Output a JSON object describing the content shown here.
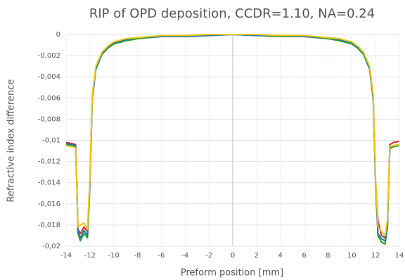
{
  "chart_data": {
    "type": "line",
    "title": "RIP of OPD deposition, CCDR=1.10, NA=0.24",
    "x_label": "Preform position [mm]",
    "y_label": "Refractive index difference",
    "x": [
      -14,
      -13.5,
      -13.2,
      -13.1,
      -13.0,
      -12.8,
      -12.5,
      -12.2,
      -12.0,
      -11.8,
      -11.5,
      -11,
      -10.5,
      -10,
      -9,
      -8,
      -6,
      -4,
      -2,
      0,
      2,
      4,
      6,
      8,
      9,
      10,
      10.5,
      11,
      11.5,
      11.8,
      12.0,
      12.2,
      12.5,
      12.8,
      13.0,
      13.1,
      13.2,
      13.5,
      14
    ],
    "series": [
      {
        "color": "#d62728",
        "values": [
          -0.0102,
          -0.0103,
          -0.0104,
          -0.014,
          -0.0184,
          -0.0188,
          -0.0182,
          -0.0186,
          -0.0138,
          -0.0058,
          -0.0031,
          -0.0018,
          -0.0012,
          -0.0008,
          -0.0005,
          -0.0003,
          -0.0002,
          -0.0001,
          0,
          0,
          -0.0001,
          -0.0001,
          -0.0002,
          -0.0003,
          -0.0005,
          -0.0008,
          -0.0012,
          -0.0018,
          -0.0031,
          -0.0058,
          -0.0138,
          -0.0176,
          -0.019,
          -0.0192,
          -0.0178,
          -0.0138,
          -0.0104,
          -0.0102,
          -0.0101
        ]
      },
      {
        "color": "#2ca02c",
        "values": [
          -0.0104,
          -0.0105,
          -0.0106,
          -0.0142,
          -0.0188,
          -0.0195,
          -0.0188,
          -0.0192,
          -0.0142,
          -0.0061,
          -0.0033,
          -0.0019,
          -0.0013,
          -0.0009,
          -0.0006,
          -0.0004,
          -0.0002,
          -0.0002,
          -0.0001,
          0,
          -0.0001,
          -0.0002,
          -0.0002,
          -0.0004,
          -0.0006,
          -0.0009,
          -0.0013,
          -0.0019,
          -0.0033,
          -0.0061,
          -0.0142,
          -0.019,
          -0.0196,
          -0.0198,
          -0.0182,
          -0.0141,
          -0.0108,
          -0.0106,
          -0.0105
        ]
      },
      {
        "color": "#1f77b4",
        "values": [
          -0.0103,
          -0.0104,
          -0.0105,
          -0.0141,
          -0.0186,
          -0.0192,
          -0.0185,
          -0.019,
          -0.014,
          -0.006,
          -0.0032,
          -0.0018,
          -0.0012,
          -0.0008,
          -0.0005,
          -0.0003,
          -0.0002,
          -0.0002,
          -0.0001,
          0,
          -0.0001,
          -0.0001,
          -0.0002,
          -0.0003,
          -0.0005,
          -0.0008,
          -0.0012,
          -0.0018,
          -0.0032,
          -0.006,
          -0.014,
          -0.0188,
          -0.0193,
          -0.0195,
          -0.018,
          -0.014,
          -0.0107,
          -0.0105,
          -0.0104
        ]
      },
      {
        "color": "#f2c80f",
        "values": [
          -0.0105,
          -0.0106,
          -0.0107,
          -0.0143,
          -0.0182,
          -0.018,
          -0.0178,
          -0.0184,
          -0.0136,
          -0.0057,
          -0.003,
          -0.0017,
          -0.0011,
          -0.0007,
          -0.0004,
          -0.0003,
          -0.0001,
          -0.0001,
          0,
          0,
          0,
          -0.0001,
          -0.0001,
          -0.0003,
          -0.0004,
          -0.0007,
          -0.0011,
          -0.0017,
          -0.003,
          -0.0057,
          -0.0136,
          -0.0182,
          -0.0186,
          -0.019,
          -0.0175,
          -0.0136,
          -0.0106,
          -0.0105,
          -0.0104
        ]
      }
    ],
    "xlim": [
      -14,
      14
    ],
    "xticks": [
      -14,
      -12,
      -10,
      -8,
      -6,
      -4,
      -2,
      0,
      2,
      4,
      6,
      8,
      10,
      12,
      14
    ],
    "ylim": [
      -0.02,
      0
    ],
    "yticks": [
      {
        "value": -0.02,
        "label": "-0,02"
      },
      {
        "value": -0.018,
        "label": "-0,018"
      },
      {
        "value": -0.016,
        "label": "-0,016"
      },
      {
        "value": -0.014,
        "label": "-0,014"
      },
      {
        "value": -0.012,
        "label": "-0,012"
      },
      {
        "value": -0.01,
        "label": "-0,01"
      },
      {
        "value": -0.008,
        "label": "-0,008"
      },
      {
        "value": -0.006,
        "label": "-0,006"
      },
      {
        "value": -0.004,
        "label": "-0,004"
      },
      {
        "value": -0.002,
        "label": "-0,002"
      },
      0
    ],
    "grid": true
  }
}
